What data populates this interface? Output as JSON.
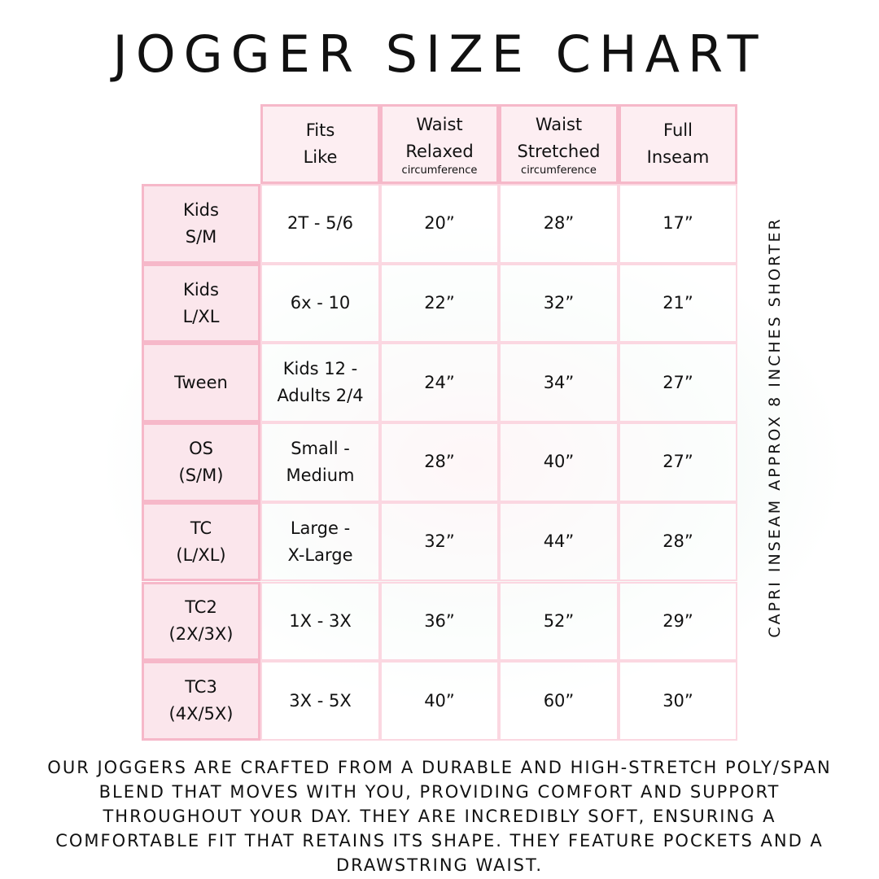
{
  "title": "JOGGER SIZE CHART",
  "headers": [
    {
      "line1": "Fits",
      "line2": "Like",
      "sub": ""
    },
    {
      "line1": "Waist",
      "line2": "Relaxed",
      "sub": "circumference"
    },
    {
      "line1": "Waist",
      "line2": "Stretched",
      "sub": "circumference"
    },
    {
      "line1": "Full",
      "line2": "Inseam",
      "sub": ""
    }
  ],
  "rows": [
    {
      "size1": "Kids",
      "size2": "S/M",
      "fits1": "2T - 5/6",
      "fits2": "",
      "relaxed": "20”",
      "stretched": "28”",
      "inseam": "17”"
    },
    {
      "size1": "Kids",
      "size2": "L/XL",
      "fits1": "6x - 10",
      "fits2": "",
      "relaxed": "22”",
      "stretched": "32”",
      "inseam": "21”"
    },
    {
      "size1": "Tween",
      "size2": "",
      "fits1": "Kids 12 -",
      "fits2": "Adults 2/4",
      "relaxed": "24”",
      "stretched": "34”",
      "inseam": "27”"
    },
    {
      "size1": "OS",
      "size2": "(S/M)",
      "fits1": "Small -",
      "fits2": "Medium",
      "relaxed": "28”",
      "stretched": "40”",
      "inseam": "27”"
    },
    {
      "size1": "TC",
      "size2": "(L/XL)",
      "fits1": "Large -",
      "fits2": "X-Large",
      "relaxed": "32”",
      "stretched": "44”",
      "inseam": "28”"
    },
    {
      "size1": "TC2",
      "size2": "(2X/3X)",
      "fits1": "1X - 3X",
      "fits2": "",
      "relaxed": "36”",
      "stretched": "52”",
      "inseam": "29”"
    },
    {
      "size1": "TC3",
      "size2": "(4X/5X)",
      "fits1": "3X - 5X",
      "fits2": "",
      "relaxed": "40”",
      "stretched": "60”",
      "inseam": "30”"
    }
  ],
  "side_note": "CAPRI INSEAM APPROX 8 INCHES SHORTER",
  "description": "Our joggers are crafted from a durable and high-stretch poly/span blend that moves with you, providing comfort and support throughout your day. They are incredibly soft, ensuring a comfortable fit that retains its shape. They feature pockets and a drawstring waist.",
  "colors": {
    "border": "#f6b8c9",
    "header_fill": "#fdeef2",
    "row_header_fill": "#fbe6ec"
  }
}
